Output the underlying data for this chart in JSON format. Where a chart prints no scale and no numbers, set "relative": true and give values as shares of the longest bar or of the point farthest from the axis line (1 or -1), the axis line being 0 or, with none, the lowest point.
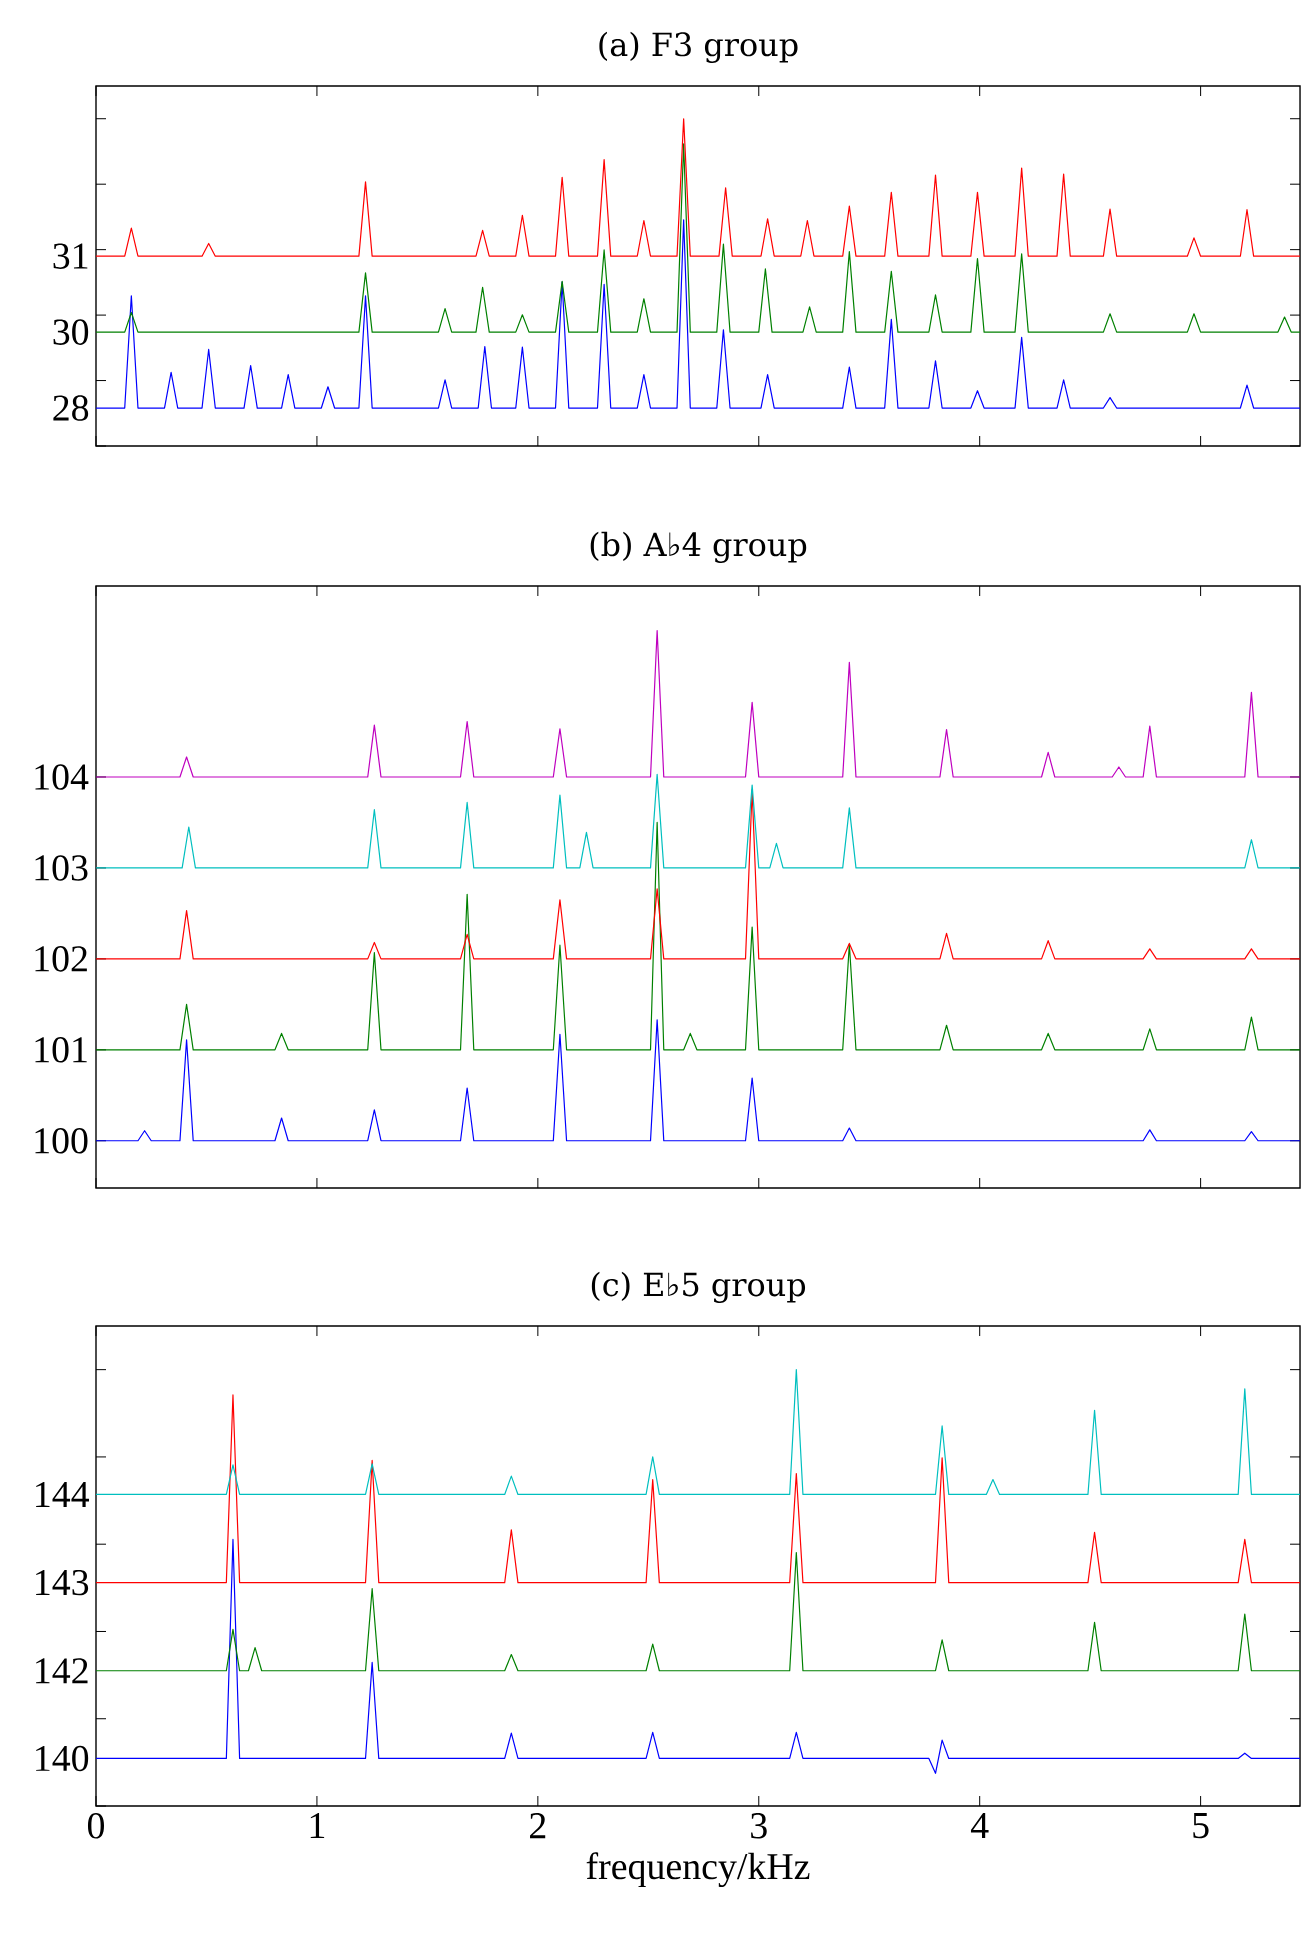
{
  "chart_data": [
    {
      "type": "line",
      "title": "(a) F3 group",
      "relative": true,
      "xlim": [
        0,
        5.45
      ],
      "xticks": [
        0,
        1,
        2,
        3,
        4,
        5
      ],
      "tick_labels": false,
      "series": [
        {
          "name": "28",
          "color": "#0000ff",
          "x": [
            0,
            0.13,
            0.16,
            0.19,
            0.31,
            0.34,
            0.37,
            0.48,
            0.51,
            0.54,
            0.67,
            0.7,
            0.73,
            0.84,
            0.87,
            0.9,
            1.02,
            1.05,
            1.08,
            1.19,
            1.22,
            1.25,
            1.55,
            1.58,
            1.61,
            1.73,
            1.76,
            1.79,
            1.9,
            1.93,
            1.96,
            2.08,
            2.11,
            2.14,
            2.27,
            2.3,
            2.33,
            2.45,
            2.48,
            2.51,
            2.63,
            2.66,
            2.69,
            2.81,
            2.84,
            2.87,
            3.01,
            3.04,
            3.07,
            3.38,
            3.41,
            3.44,
            3.57,
            3.6,
            3.63,
            3.77,
            3.8,
            3.83,
            3.96,
            3.99,
            4.02,
            4.16,
            4.19,
            4.22,
            4.35,
            4.38,
            4.41,
            4.56,
            4.59,
            4.62,
            5.18,
            5.21,
            5.24,
            5.45
          ],
          "values": [
            0.116,
            0.116,
            0.459,
            0.116,
            0.116,
            0.225,
            0.116,
            0.116,
            0.295,
            0.116,
            0.116,
            0.246,
            0.116,
            0.116,
            0.218,
            0.116,
            0.116,
            0.181,
            0.116,
            0.116,
            0.459,
            0.116,
            0.116,
            0.202,
            0.116,
            0.116,
            0.304,
            0.116,
            0.116,
            0.302,
            0.116,
            0.116,
            0.501,
            0.116,
            0.116,
            0.494,
            0.116,
            0.116,
            0.218,
            0.116,
            0.116,
            0.691,
            0.116,
            0.116,
            0.355,
            0.116,
            0.116,
            0.218,
            0.116,
            0.116,
            0.241,
            0.116,
            0.116,
            0.387,
            0.116,
            0.116,
            0.26,
            0.116,
            0.116,
            0.169,
            0.116,
            0.116,
            0.332,
            0.116,
            0.116,
            0.202,
            0.116,
            0.116,
            0.148,
            0.116,
            0.116,
            0.186,
            0.116,
            0.116
          ]
        },
        {
          "name": "30",
          "color": "#008000",
          "x": [
            0,
            0.13,
            0.16,
            0.19,
            1.19,
            1.22,
            1.25,
            1.55,
            1.58,
            1.61,
            1.72,
            1.75,
            1.78,
            1.9,
            1.93,
            1.96,
            2.08,
            2.11,
            2.14,
            2.27,
            2.3,
            2.33,
            2.45,
            2.48,
            2.51,
            2.63,
            2.66,
            2.69,
            2.81,
            2.84,
            2.87,
            3.0,
            3.03,
            3.06,
            3.2,
            3.23,
            3.26,
            3.38,
            3.41,
            3.44,
            3.57,
            3.6,
            3.63,
            3.77,
            3.8,
            3.83,
            3.96,
            3.99,
            4.02,
            4.16,
            4.19,
            4.22,
            4.56,
            4.59,
            4.62,
            4.94,
            4.97,
            5.0,
            5.35,
            5.38,
            5.41,
            5.45
          ],
          "values": [
            0.348,
            0.348,
            0.408,
            0.348,
            0.348,
            0.529,
            0.348,
            0.348,
            0.42,
            0.348,
            0.348,
            0.485,
            0.348,
            0.348,
            0.401,
            0.348,
            0.348,
            0.503,
            0.348,
            0.348,
            0.599,
            0.348,
            0.348,
            0.45,
            0.348,
            0.348,
            0.923,
            0.348,
            0.348,
            0.617,
            0.348,
            0.348,
            0.541,
            0.348,
            0.348,
            0.425,
            0.348,
            0.348,
            0.594,
            0.348,
            0.348,
            0.534,
            0.348,
            0.348,
            0.462,
            0.348,
            0.348,
            0.573,
            0.348,
            0.348,
            0.587,
            0.348,
            0.348,
            0.404,
            0.348,
            0.348,
            0.404,
            0.348,
            0.348,
            0.394,
            0.348,
            0.348
          ]
        },
        {
          "name": "31",
          "color": "#ff0000",
          "x": [
            0,
            0.13,
            0.16,
            0.19,
            0.48,
            0.51,
            0.54,
            1.19,
            1.22,
            1.25,
            1.72,
            1.75,
            1.78,
            1.9,
            1.93,
            1.96,
            2.08,
            2.11,
            2.14,
            2.27,
            2.3,
            2.33,
            2.45,
            2.48,
            2.51,
            2.63,
            2.66,
            2.69,
            2.82,
            2.85,
            2.88,
            3.01,
            3.04,
            3.07,
            3.19,
            3.22,
            3.25,
            3.38,
            3.41,
            3.44,
            3.57,
            3.6,
            3.63,
            3.77,
            3.8,
            3.83,
            3.96,
            3.99,
            4.02,
            4.16,
            4.19,
            4.22,
            4.35,
            4.38,
            4.41,
            4.56,
            4.59,
            4.62,
            4.94,
            4.97,
            5.0,
            5.18,
            5.21,
            5.24,
            5.45
          ],
          "values": [
            0.58,
            0.58,
            0.666,
            0.58,
            0.58,
            0.619,
            0.58,
            0.58,
            0.807,
            0.58,
            0.58,
            0.659,
            0.58,
            0.58,
            0.705,
            0.58,
            0.58,
            0.821,
            0.58,
            0.58,
            0.875,
            0.58,
            0.58,
            0.689,
            0.58,
            0.58,
            1,
            0.58,
            0.58,
            0.789,
            0.58,
            0.58,
            0.694,
            0.58,
            0.58,
            0.689,
            0.58,
            0.58,
            0.733,
            0.58,
            0.58,
            0.775,
            0.58,
            0.58,
            0.828,
            0.58,
            0.58,
            0.775,
            0.58,
            0.58,
            0.849,
            0.58,
            0.58,
            0.831,
            0.58,
            0.58,
            0.724,
            0.58,
            0.58,
            0.636,
            0.58,
            0.58,
            0.722,
            0.58,
            0.58
          ]
        }
      ]
    },
    {
      "type": "line",
      "title": "(b) A♭4 group",
      "xlim": [
        0,
        5.45
      ],
      "xticks": [
        0,
        1,
        2,
        3,
        4,
        5
      ],
      "ylim": [
        99.48,
        106.1
      ],
      "yticks": [
        100,
        101,
        102,
        103,
        104
      ],
      "tick_labels": "y",
      "series": [
        {
          "color": "#0000ff",
          "x": [
            0,
            0.19,
            0.22,
            0.25,
            0.38,
            0.41,
            0.44,
            0.81,
            0.84,
            0.87,
            1.23,
            1.26,
            1.29,
            1.65,
            1.68,
            1.71,
            2.07,
            2.1,
            2.13,
            2.51,
            2.54,
            2.57,
            2.94,
            2.97,
            3.0,
            3.38,
            3.41,
            3.44,
            4.74,
            4.77,
            4.8,
            5.2,
            5.23,
            5.26,
            5.45
          ],
          "values": [
            100,
            100,
            100.11,
            100,
            100,
            101.11,
            100,
            100,
            100.25,
            100,
            100,
            100.34,
            100,
            100,
            100.58,
            100,
            100,
            101.17,
            100,
            100,
            101.33,
            100,
            100,
            100.69,
            100,
            100,
            100.14,
            100,
            100,
            100.12,
            100,
            100,
            100.1,
            100,
            100
          ]
        },
        {
          "color": "#008000",
          "x": [
            0,
            0.38,
            0.41,
            0.44,
            0.81,
            0.84,
            0.87,
            1.23,
            1.26,
            1.29,
            1.65,
            1.68,
            1.71,
            2.07,
            2.1,
            2.13,
            2.51,
            2.54,
            2.57,
            2.66,
            2.69,
            2.72,
            2.94,
            2.97,
            3.0,
            3.38,
            3.41,
            3.44,
            3.82,
            3.85,
            3.88,
            4.28,
            4.31,
            4.34,
            4.74,
            4.77,
            4.8,
            5.2,
            5.23,
            5.26,
            5.45
          ],
          "values": [
            101,
            101,
            101.5,
            101,
            101,
            101.18,
            101,
            101,
            102.07,
            101,
            101,
            102.71,
            101,
            101,
            102.15,
            101,
            101,
            103.5,
            101,
            101,
            101.18,
            101,
            101,
            102.35,
            101,
            101,
            102.16,
            101,
            101,
            101.27,
            101,
            101,
            101.18,
            101,
            101,
            101.23,
            101,
            101,
            101.36,
            101,
            101
          ]
        },
        {
          "color": "#ff0000",
          "x": [
            0,
            0.38,
            0.41,
            0.44,
            1.23,
            1.26,
            1.29,
            1.65,
            1.68,
            1.71,
            2.07,
            2.1,
            2.13,
            2.51,
            2.54,
            2.57,
            2.94,
            2.97,
            3.0,
            3.38,
            3.41,
            3.44,
            3.82,
            3.85,
            3.88,
            4.28,
            4.31,
            4.34,
            4.74,
            4.77,
            4.8,
            5.2,
            5.23,
            5.26,
            5.45
          ],
          "values": [
            102,
            102,
            102.53,
            102,
            102,
            102.18,
            102,
            102,
            102.27,
            102,
            102,
            102.65,
            102,
            102,
            102.77,
            102,
            102,
            103.86,
            102,
            102,
            102.17,
            102,
            102,
            102.28,
            102,
            102,
            102.2,
            102,
            102,
            102.11,
            102,
            102,
            102.11,
            102,
            102
          ]
        },
        {
          "color": "#00bfbf",
          "x": [
            0,
            0.39,
            0.42,
            0.45,
            1.23,
            1.26,
            1.29,
            1.65,
            1.68,
            1.71,
            2.07,
            2.1,
            2.13,
            2.19,
            2.22,
            2.25,
            2.51,
            2.54,
            2.57,
            2.94,
            2.97,
            3.0,
            3.05,
            3.08,
            3.11,
            3.38,
            3.41,
            3.44,
            5.2,
            5.23,
            5.26,
            5.45
          ],
          "values": [
            103,
            103,
            103.45,
            103,
            103,
            103.64,
            103,
            103,
            103.72,
            103,
            103,
            103.8,
            103,
            103,
            103.39,
            103,
            103,
            104.03,
            103,
            103,
            103.91,
            103,
            103,
            103.27,
            103,
            103,
            103.66,
            103,
            103,
            103.31,
            103,
            103
          ]
        },
        {
          "color": "#bf00bf",
          "x": [
            0,
            0.38,
            0.41,
            0.44,
            1.23,
            1.26,
            1.29,
            1.65,
            1.68,
            1.71,
            2.07,
            2.1,
            2.13,
            2.51,
            2.54,
            2.57,
            2.94,
            2.97,
            3.0,
            3.38,
            3.41,
            3.44,
            3.82,
            3.85,
            3.88,
            4.28,
            4.31,
            4.34,
            4.6,
            4.63,
            4.66,
            4.74,
            4.77,
            4.8,
            5.2,
            5.23,
            5.26,
            5.45
          ],
          "values": [
            104,
            104,
            104.22,
            104,
            104,
            104.57,
            104,
            104,
            104.61,
            104,
            104,
            104.53,
            104,
            104,
            105.61,
            104,
            104,
            104.82,
            104,
            104,
            105.26,
            104,
            104,
            104.52,
            104,
            104,
            104.27,
            104,
            104,
            104.11,
            104,
            104,
            104.56,
            104,
            104,
            104.93,
            104,
            104
          ]
        }
      ]
    },
    {
      "type": "line",
      "title": "(c) E♭5 group",
      "xlabel": "frequency/kHz",
      "relative": true,
      "xlim": [
        0,
        5.45
      ],
      "xticks": [
        0,
        1,
        2,
        3,
        4,
        5
      ],
      "tick_labels": "x",
      "series": [
        {
          "name": "140",
          "color": "#0000ff",
          "x": [
            0,
            0.59,
            0.62,
            0.65,
            1.22,
            1.25,
            1.28,
            1.85,
            1.88,
            1.91,
            2.49,
            2.52,
            2.55,
            3.14,
            3.17,
            3.2,
            3.77,
            3.8,
            3.83,
            3.86,
            5.17,
            5.2,
            5.23,
            5.45
          ],
          "values": [
            0.109,
            0.109,
            0.611,
            0.109,
            0.109,
            0.329,
            0.109,
            0.109,
            0.167,
            0.109,
            0.109,
            0.169,
            0.109,
            0.109,
            0.169,
            0.109,
            0.109,
            0.075,
            0.151,
            0.109,
            0.109,
            0.121,
            0.109,
            0.109
          ]
        },
        {
          "name": "142",
          "color": "#008000",
          "x": [
            0,
            0.59,
            0.62,
            0.65,
            0.69,
            0.72,
            0.75,
            1.22,
            1.25,
            1.28,
            1.85,
            1.88,
            1.91,
            2.49,
            2.52,
            2.55,
            3.14,
            3.17,
            3.2,
            3.8,
            3.83,
            3.86,
            4.49,
            4.52,
            4.55,
            5.17,
            5.2,
            5.23,
            5.45
          ],
          "values": [
            0.31,
            0.31,
            0.405,
            0.31,
            0.31,
            0.363,
            0.31,
            0.31,
            0.498,
            0.31,
            0.31,
            0.347,
            0.31,
            0.31,
            0.371,
            0.31,
            0.31,
            0.581,
            0.31,
            0.31,
            0.381,
            0.31,
            0.31,
            0.421,
            0.31,
            0.31,
            0.44,
            0.31,
            0.31
          ]
        },
        {
          "name": "143",
          "color": "#ff0000",
          "x": [
            0,
            0.59,
            0.62,
            0.65,
            1.22,
            1.25,
            1.28,
            1.85,
            1.88,
            1.91,
            2.49,
            2.52,
            2.55,
            3.14,
            3.17,
            3.2,
            3.8,
            3.83,
            3.86,
            4.49,
            4.52,
            4.55,
            5.17,
            5.2,
            5.23,
            5.45
          ],
          "values": [
            0.512,
            0.512,
            0.942,
            0.512,
            0.512,
            0.792,
            0.512,
            0.512,
            0.633,
            0.512,
            0.512,
            0.748,
            0.512,
            0.512,
            0.762,
            0.512,
            0.512,
            0.798,
            0.512,
            0.512,
            0.627,
            0.512,
            0.512,
            0.611,
            0.512,
            0.512
          ]
        },
        {
          "name": "144",
          "color": "#00bfbf",
          "x": [
            0,
            0.59,
            0.62,
            0.65,
            1.22,
            1.25,
            1.28,
            1.85,
            1.88,
            1.91,
            2.49,
            2.52,
            2.55,
            3.14,
            3.17,
            3.2,
            3.8,
            3.83,
            3.86,
            4.03,
            4.06,
            4.09,
            4.49,
            4.52,
            4.55,
            5.17,
            5.2,
            5.23,
            5.45
          ],
          "values": [
            0.714,
            0.714,
            0.782,
            0.714,
            0.714,
            0.784,
            0.714,
            0.714,
            0.756,
            0.714,
            0.714,
            0.8,
            0.714,
            0.714,
            1,
            0.714,
            0.714,
            0.871,
            0.714,
            0.714,
            0.748,
            0.714,
            0.714,
            0.907,
            0.714,
            0.714,
            0.956,
            0.714,
            0.714
          ]
        }
      ]
    }
  ]
}
